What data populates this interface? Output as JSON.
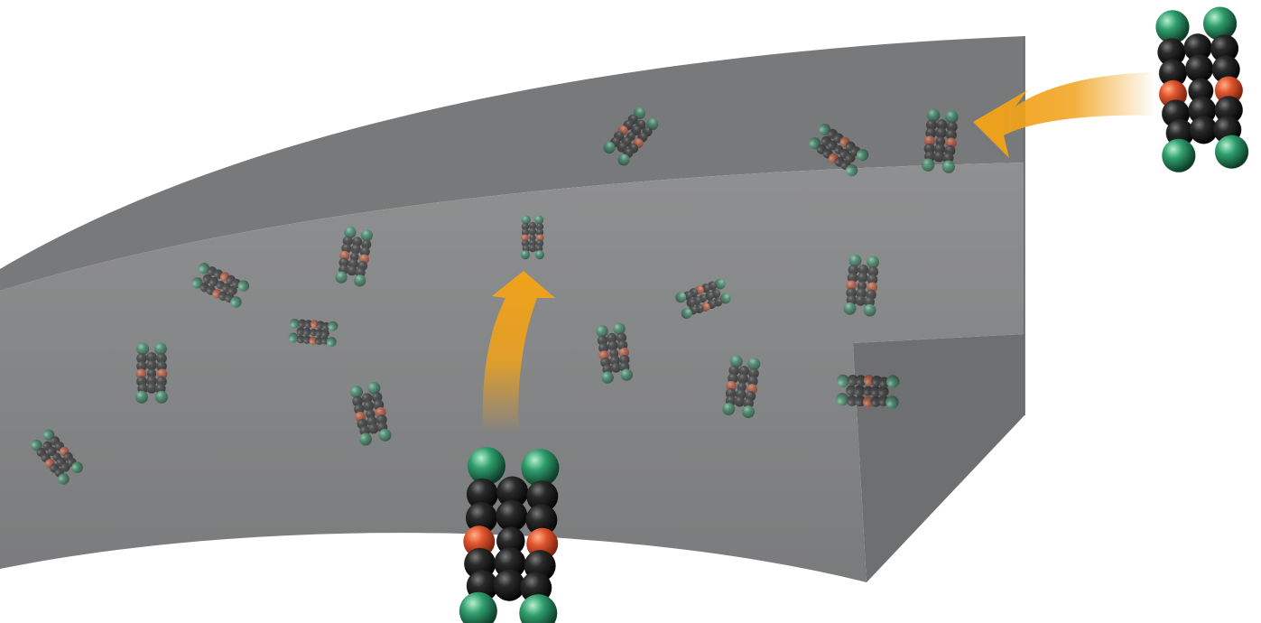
{
  "scene": {
    "slab_color": "#838485",
    "slab_top_color": "#747576",
    "slab_side_color": "#6c6d6e",
    "arrow_color": "#f0a21a",
    "carbon_color": "#151515",
    "oxygen_color": "#e0552d",
    "halogen_color": "#2f9e6d"
  }
}
